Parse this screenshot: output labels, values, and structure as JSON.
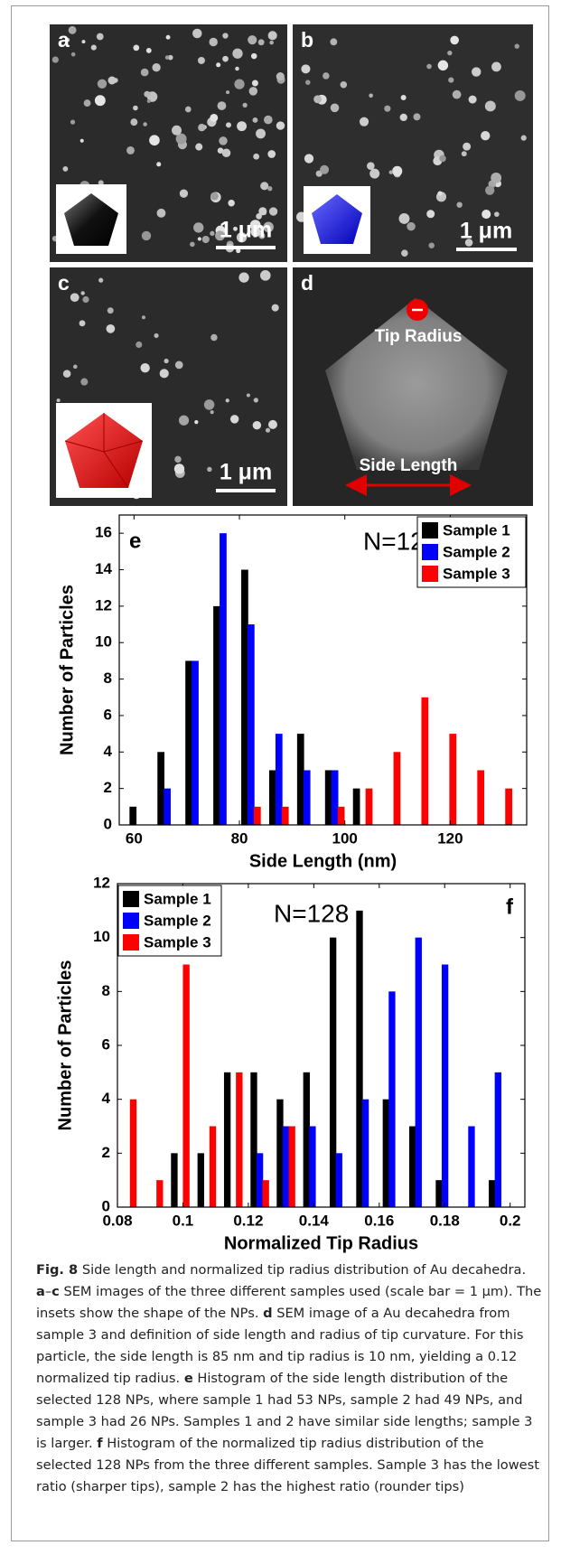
{
  "panels": [
    {
      "label": "a",
      "scale_bar": "1 μm"
    },
    {
      "label": "b",
      "scale_bar": "1 μm"
    },
    {
      "label": "c",
      "scale_bar": "1 μm"
    },
    {
      "label": "d",
      "annotations": [
        "Tip Radius",
        "Side Length"
      ]
    }
  ],
  "chart_data": [
    {
      "type": "bar",
      "panel_label": "e",
      "annotation": "N=128",
      "x_label": "Side Length (nm)",
      "y_label": "Number of Particles",
      "x": [
        61,
        66.3,
        71.6,
        76.9,
        82.2,
        87.5,
        92.8,
        98.1,
        103.4,
        108.7,
        114,
        119.3,
        124.6,
        129.9
      ],
      "series": [
        {
          "name": "Sample 1",
          "color": "#000000",
          "values": [
            1,
            4,
            9,
            12,
            14,
            3,
            5,
            3,
            2,
            0,
            0,
            0,
            0,
            0
          ]
        },
        {
          "name": "Sample 2",
          "color": "#0000ff",
          "values": [
            0,
            2,
            9,
            16,
            11,
            5,
            3,
            3,
            0,
            0,
            0,
            0,
            0,
            0
          ]
        },
        {
          "name": "Sample 3",
          "color": "#ff0000",
          "values": [
            0,
            0,
            0,
            0,
            1,
            1,
            0,
            1,
            2,
            4,
            7,
            5,
            3,
            2
          ]
        }
      ],
      "xlim": [
        57.2,
        134.5
      ],
      "xticks": [
        60,
        80,
        100,
        120
      ],
      "ylim": [
        0,
        17
      ],
      "yticks": [
        0,
        2,
        4,
        6,
        8,
        10,
        12,
        14,
        16
      ],
      "legend": "upper right"
    },
    {
      "type": "bar",
      "panel_label": "f",
      "annotation": "N=128",
      "x_label": "Normalized Tip Radius",
      "y_label": "Number of Particles",
      "x": [
        0.083,
        0.0911,
        0.0992,
        0.1073,
        0.1154,
        0.1235,
        0.1315,
        0.1396,
        0.1477,
        0.1558,
        0.1639,
        0.172,
        0.1801,
        0.1882,
        0.1963
      ],
      "series": [
        {
          "name": "Sample 1",
          "color": "#000000",
          "values": [
            0,
            0,
            2,
            2,
            5,
            5,
            4,
            5,
            10,
            11,
            4,
            3,
            1,
            0,
            1
          ]
        },
        {
          "name": "Sample 2",
          "color": "#0000ff",
          "values": [
            0,
            0,
            0,
            0,
            0,
            2,
            3,
            3,
            2,
            4,
            8,
            10,
            9,
            3,
            5
          ]
        },
        {
          "name": "Sample 3",
          "color": "#ff0000",
          "values": [
            4,
            1,
            9,
            3,
            5,
            1,
            3,
            0,
            0,
            0,
            0,
            0,
            0,
            0,
            0
          ]
        }
      ],
      "xlim": [
        0.08,
        0.2045
      ],
      "xticks": [
        0.08,
        0.1,
        0.12,
        0.14,
        0.16,
        0.18,
        0.2
      ],
      "ylim": [
        0,
        12
      ],
      "yticks": [
        0,
        2,
        4,
        6,
        8,
        10,
        12
      ],
      "legend": "upper left"
    }
  ],
  "caption": {
    "parts": [
      "Fig. 8",
      "  Side length and normalized tip radius distribution of Au decahedra. ",
      "a",
      "–",
      "c",
      " SEM images of the three different samples used (scale bar = 1 μm). The insets show the shape of the NPs. ",
      "d",
      " SEM image of a Au decahedra from sample 3 and definition of side length and radius of tip curvature. For this particle, the side length is 85 nm and tip radius is 10 nm, yielding a 0.12 normalized tip radius. ",
      "e",
      " Histogram of the side length distribution of the selected 128 NPs, where sample 1 had 53 NPs, sample 2 had 49 NPs, and sample 3 had 26 NPs. Samples 1 and 2 have similar side lengths; sample 3 is larger. ",
      "f",
      " Histogram of the normalized tip radius distribution of the selected 128 NPs from the three different samples. Sample 3 has the lowest ratio (sharper tips), sample 2 has the highest ratio (rounder tips)"
    ]
  }
}
